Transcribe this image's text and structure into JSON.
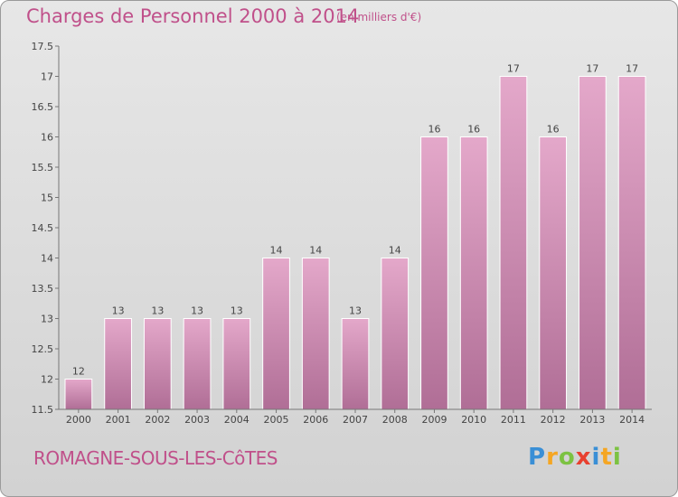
{
  "chart_data": {
    "type": "bar",
    "title": "Charges de Personnel 2000 à 2014",
    "subtitle": "(en milliers d'€)",
    "categories": [
      "2000",
      "2001",
      "2002",
      "2003",
      "2004",
      "2005",
      "2006",
      "2007",
      "2008",
      "2009",
      "2010",
      "2011",
      "2012",
      "2013",
      "2014"
    ],
    "values": [
      12,
      13,
      13,
      13,
      13,
      14,
      14,
      13,
      14,
      16,
      16,
      17,
      16,
      17,
      17
    ],
    "data_labels": [
      "12",
      "13",
      "13",
      "13",
      "13",
      "14",
      "14",
      "13",
      "14",
      "16",
      "16",
      "17",
      "16",
      "17",
      "17"
    ],
    "ylim": [
      11.5,
      17.5
    ],
    "yticks": [
      11.5,
      12,
      12.5,
      13,
      13.5,
      14,
      14.5,
      15,
      15.5,
      16,
      16.5,
      17,
      17.5
    ],
    "grid": false,
    "xlabel": "",
    "ylabel": "",
    "bar_color": "#c77fa6"
  },
  "commune": "ROMAGNE-SOUS-LES-CôTES",
  "logo": {
    "letters": [
      "P",
      "r",
      "o",
      "x",
      "i",
      "t",
      "i"
    ],
    "colors": [
      "#3a8fd6",
      "#f5a623",
      "#7cc242",
      "#e8402f",
      "#3a8fd6",
      "#f5a623",
      "#7cc242"
    ]
  }
}
